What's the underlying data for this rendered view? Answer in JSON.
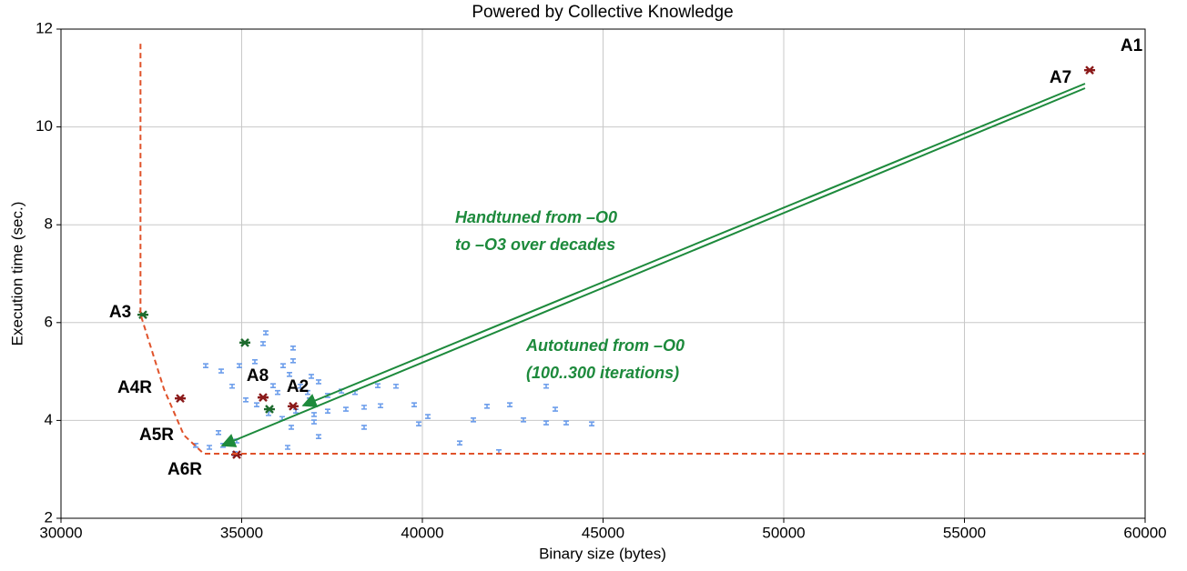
{
  "chart_data": {
    "type": "scatter",
    "title": "Powered by Collective Knowledge",
    "x_label": "Binary size (bytes)",
    "y_label": "Execution time (sec.)",
    "xlim": [
      30000,
      60000
    ],
    "ylim": [
      2,
      12
    ],
    "xticks": [
      30000,
      35000,
      40000,
      45000,
      50000,
      55000,
      60000
    ],
    "yticks": [
      2,
      4,
      6,
      8,
      10,
      12
    ],
    "grid": true,
    "series": [
      {
        "color": "#6d9eeb",
        "marker": "dash",
        "x": [
          35668,
          35592,
          36423,
          36423,
          34005,
          34433,
          34937,
          35365,
          36146,
          36323,
          36927,
          37129,
          35869,
          35995,
          36625,
          36826,
          37381,
          37759,
          38136,
          38766,
          39774,
          38842,
          38388,
          37884,
          37381,
          37003,
          36499,
          36121,
          35743,
          35416,
          35114,
          34736,
          36877,
          37003,
          36373,
          37129,
          38388,
          39900,
          40152,
          41411,
          41789,
          42419,
          42797,
          43426,
          43678,
          43980,
          44686,
          34358,
          33728,
          34106,
          34484,
          34862,
          36272,
          41033,
          39270,
          43426,
          42116,
          34811
        ],
        "y": [
          5.79,
          5.57,
          5.48,
          5.22,
          5.12,
          5.01,
          5.12,
          5.2,
          5.12,
          4.94,
          4.9,
          4.79,
          4.71,
          4.57,
          4.7,
          4.57,
          4.51,
          4.6,
          4.57,
          4.71,
          4.32,
          4.3,
          4.27,
          4.23,
          4.19,
          4.12,
          4.19,
          4.04,
          4.14,
          4.32,
          4.42,
          4.7,
          4.42,
          3.97,
          3.86,
          3.67,
          3.86,
          3.93,
          4.08,
          4.01,
          4.29,
          4.32,
          4.01,
          3.95,
          4.23,
          3.95,
          3.93,
          3.75,
          3.49,
          3.45,
          3.49,
          3.58,
          3.45,
          3.54,
          4.7,
          4.7,
          3.36,
          3.32
        ]
      },
      {
        "color": "#8b1a1a",
        "marker": "cross",
        "x": [
          58465,
          36423,
          35592,
          33300,
          34862
        ],
        "y": [
          11.16,
          4.29,
          4.47,
          4.45,
          3.3
        ]
      },
      {
        "color": "#1e6b2e",
        "marker": "cross",
        "x": [
          32267,
          35089,
          35768
        ],
        "y": [
          6.16,
          5.59,
          4.23
        ]
      },
      {
        "color": "#e0522a",
        "marker": "dashed-line",
        "x": [
          32200,
          32200,
          32850,
          33400,
          33950,
          60000
        ],
        "y": [
          11.7,
          6.17,
          4.64,
          3.7,
          3.32,
          3.32
        ]
      }
    ],
    "annotations": [
      "A1",
      "A7",
      "A3",
      "A4R",
      "A5R",
      "A6R",
      "A8",
      "A2"
    ],
    "notes": [
      "Handtuned from –O0",
      "to –O3 over decades",
      "Autotuned from –O0",
      "(100..300 iterations)"
    ]
  }
}
